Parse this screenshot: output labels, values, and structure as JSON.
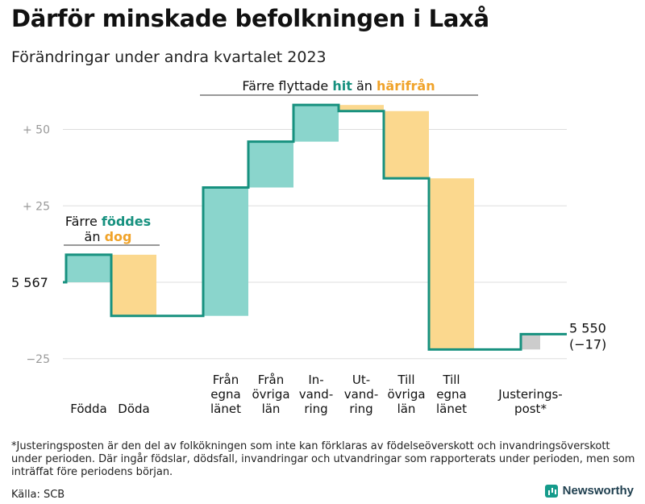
{
  "title": "Därför minskade befolkningen i Laxå",
  "subtitle": "Förändringar under andra kvartalet 2023",
  "colors": {
    "positive": "#8ad5cc",
    "negative": "#fbd88e",
    "adjustment": "#cccccc",
    "line": "#17917f",
    "hit": "#17917f",
    "harifran": "#f0a32a"
  },
  "chart_data": {
    "type": "waterfall",
    "start_value": 5567,
    "start_label": "5  567",
    "end_label": "5 550",
    "end_change": "(−17)",
    "ylim": [
      -27,
      59
    ],
    "yticks": [
      {
        "value": 50,
        "label": "+  50"
      },
      {
        "value": 25,
        "label": "+  25"
      },
      {
        "value": -25,
        "label": "−25"
      }
    ],
    "steps": [
      {
        "label": [
          "Födda"
        ],
        "change": 9,
        "kind": "positive"
      },
      {
        "label": [
          "Döda"
        ],
        "change": -20,
        "kind": "negative"
      },
      {
        "label": [
          "Från",
          "egna",
          "länet"
        ],
        "change": 42,
        "kind": "positive"
      },
      {
        "label": [
          "Från",
          "övriga",
          "län"
        ],
        "change": 15,
        "kind": "positive"
      },
      {
        "label": [
          "In-",
          "vand-",
          "ring"
        ],
        "change": 12,
        "kind": "positive"
      },
      {
        "label": [
          "Ut-",
          "vand-",
          "ring"
        ],
        "change": -2,
        "kind": "negative"
      },
      {
        "label": [
          "Till",
          "övriga",
          "län"
        ],
        "change": -22,
        "kind": "negative"
      },
      {
        "label": [
          "Till",
          "egna",
          "länet"
        ],
        "change": -56,
        "kind": "negative"
      },
      {
        "label": [
          "Justerings-",
          "post*"
        ],
        "change": 5,
        "kind": "adjustment"
      }
    ],
    "annotations": [
      {
        "parts": [
          {
            "text": "Färre ",
            "style": "plain"
          },
          {
            "text": "föddes",
            "style": "hit"
          }
        ],
        "line2": [
          {
            "text": "än ",
            "style": "plain"
          },
          {
            "text": "dog",
            "style": "harifran"
          }
        ]
      },
      {
        "parts": [
          {
            "text": "Färre flyttade ",
            "style": "plain"
          },
          {
            "text": "hit",
            "style": "hit"
          },
          {
            "text": " än ",
            "style": "plain"
          },
          {
            "text": "härifrån",
            "style": "harifran"
          }
        ]
      }
    ]
  },
  "footnote": "*Justeringsposten är den del av folkökningen som inte kan förklaras av födelseöverskott och invandringsöverskott under perioden. Där ingår födslar, dödsfall, invandringar och utvandringar som rapporterats under perioden, men som inträffat före periodens början.",
  "source": "Källa: SCB",
  "brand": "Newsworthy"
}
